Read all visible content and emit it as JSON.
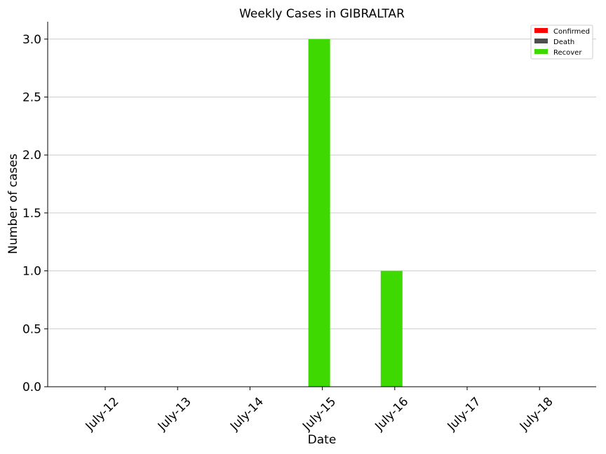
{
  "chart_data": {
    "type": "bar",
    "title": "Weekly Cases in GIBRALTAR",
    "xlabel": "Date",
    "ylabel": "Number of cases",
    "categories": [
      "July-12",
      "July-13",
      "July-14",
      "July-15",
      "July-16",
      "July-17",
      "July-18"
    ],
    "series": [
      {
        "name": "Confirmed",
        "color": "#ff0000",
        "values": [
          0,
          0,
          0,
          0,
          0,
          0,
          0
        ]
      },
      {
        "name": "Death",
        "color": "#4d4d4d",
        "values": [
          0,
          0,
          0,
          0,
          0,
          0,
          0
        ]
      },
      {
        "name": "Recover",
        "color": "#3dd900",
        "values": [
          0,
          0,
          0,
          3,
          1,
          0,
          0
        ]
      }
    ],
    "ylim": [
      0,
      3.15
    ],
    "yticks": [
      "0.0",
      "0.5",
      "1.0",
      "1.5",
      "2.0",
      "2.5",
      "3.0"
    ],
    "grid": "horizontal",
    "legend_position": "top-right"
  }
}
